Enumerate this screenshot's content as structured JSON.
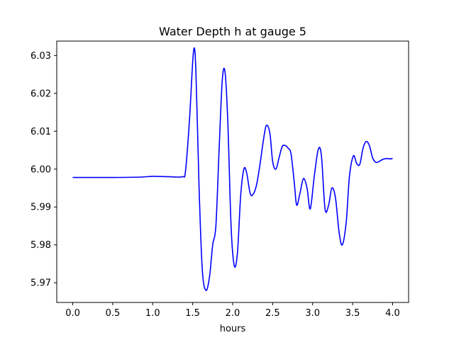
{
  "chart_data": {
    "type": "line",
    "title": "Water Depth h at gauge 5",
    "xlabel": "hours",
    "ylabel": "",
    "xlim": [
      -0.2,
      4.2
    ],
    "ylim": [
      5.9648,
      6.0338
    ],
    "xticks": [
      0.0,
      0.5,
      1.0,
      1.5,
      2.0,
      2.5,
      3.0,
      3.5,
      4.0
    ],
    "xtick_labels": [
      "0.0",
      "0.5",
      "1.0",
      "1.5",
      "2.0",
      "2.5",
      "3.0",
      "3.5",
      "4.0"
    ],
    "yticks": [
      5.97,
      5.98,
      5.99,
      6.0,
      6.01,
      6.02,
      6.03
    ],
    "ytick_labels": [
      "5.97",
      "5.98",
      "5.99",
      "6.00",
      "6.01",
      "6.02",
      "6.03"
    ],
    "grid": false,
    "line_color": "#0000ff",
    "series": [
      {
        "name": "",
        "x": [
          0.0,
          0.5,
          0.85,
          1.0,
          1.2,
          1.37,
          1.41,
          1.46,
          1.51,
          1.54,
          1.58,
          1.62,
          1.665,
          1.71,
          1.75,
          1.79,
          1.83,
          1.87,
          1.905,
          1.94,
          1.98,
          2.02,
          2.06,
          2.1,
          2.14,
          2.175,
          2.22,
          2.26,
          2.3,
          2.34,
          2.38,
          2.42,
          2.465,
          2.5,
          2.54,
          2.58,
          2.62,
          2.66,
          2.695,
          2.73,
          2.77,
          2.8,
          2.84,
          2.885,
          2.93,
          2.97,
          3.02,
          3.07,
          3.11,
          3.155,
          3.2,
          3.24,
          3.285,
          3.33,
          3.37,
          3.42,
          3.46,
          3.51,
          3.55,
          3.59,
          3.63,
          3.67,
          3.71,
          3.75,
          3.79,
          3.83,
          3.88,
          3.93,
          3.97,
          4.0
        ],
        "y": [
          5.9978,
          5.9978,
          5.9979,
          5.9981,
          5.998,
          5.998,
          5.9995,
          6.013,
          6.031,
          6.026,
          5.995,
          5.9735,
          5.968,
          5.9715,
          5.98,
          5.985,
          6.005,
          6.0235,
          6.0255,
          6.012,
          5.985,
          5.9745,
          5.978,
          5.993,
          6.0,
          5.999,
          5.9935,
          5.9935,
          5.996,
          6.001,
          6.007,
          6.0115,
          6.0095,
          6.002,
          6.0,
          6.003,
          6.006,
          6.0062,
          6.0055,
          6.004,
          5.9965,
          5.9905,
          5.9935,
          5.9975,
          5.995,
          5.9895,
          5.998,
          6.0052,
          6.0035,
          5.9895,
          5.9905,
          5.995,
          5.9925,
          5.9835,
          5.98,
          5.986,
          5.998,
          6.0035,
          6.0015,
          6.0013,
          6.0055,
          6.0073,
          6.0062,
          6.003,
          6.0018,
          6.002,
          6.0026,
          6.0028,
          6.0027,
          6.0028
        ]
      }
    ]
  }
}
